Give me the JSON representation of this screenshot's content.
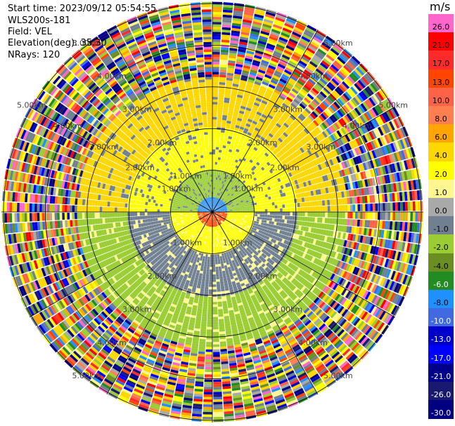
{
  "header": {
    "start_time": "Start time: 2023/09/12 05:54:55",
    "instrument": "WLS200s-181",
    "field": "Field: VEL",
    "elevation": "Elevation(deg): 35.30",
    "nrays": "NRays: 120"
  },
  "colorbar": {
    "title": "m/s",
    "bins": [
      {
        "label": "26.0",
        "color": "#ff66cc",
        "text": "#000000"
      },
      {
        "label": "21.0",
        "color": "#ff0000",
        "text": "#000000"
      },
      {
        "label": "17.0",
        "color": "#ff2a2a",
        "text": "#000000"
      },
      {
        "label": "13.0",
        "color": "#ff4500",
        "text": "#000000"
      },
      {
        "label": "10.0",
        "color": "#ff6347",
        "text": "#000000"
      },
      {
        "label": "8.0",
        "color": "#ff7f50",
        "text": "#000000"
      },
      {
        "label": "6.0",
        "color": "#ffa500",
        "text": "#000000"
      },
      {
        "label": "4.0",
        "color": "#ffd700",
        "text": "#000000"
      },
      {
        "label": "2.0",
        "color": "#ffff00",
        "text": "#000000"
      },
      {
        "label": "1.0",
        "color": "#fff68f",
        "text": "#000000"
      },
      {
        "label": "0.0",
        "color": "#a9a9a9",
        "text": "#000000"
      },
      {
        "label": "-1.0",
        "color": "#708090",
        "text": "#000000"
      },
      {
        "label": "-2.0",
        "color": "#9acd32",
        "text": "#000000"
      },
      {
        "label": "-4.0",
        "color": "#6b8e23",
        "text": "#000000"
      },
      {
        "label": "-6.0",
        "color": "#228b22",
        "text": "#ffffff"
      },
      {
        "label": "-8.0",
        "color": "#1e90ff",
        "text": "#000000"
      },
      {
        "label": "-10.0",
        "color": "#4169e1",
        "text": "#ffffff"
      },
      {
        "label": "-13.0",
        "color": "#0000cd",
        "text": "#ffffff"
      },
      {
        "label": "-17.0",
        "color": "#0000ff",
        "text": "#ffffff"
      },
      {
        "label": "-21.0",
        "color": "#00008b",
        "text": "#ffffff"
      },
      {
        "label": "-26.0",
        "color": "#191970",
        "text": "#ffffff"
      },
      {
        "label": "-30.0",
        "color": "#000080",
        "text": "#ffffff"
      }
    ]
  },
  "chart_data": {
    "type": "heatmap",
    "subtype": "polar-ppi",
    "field": "VEL",
    "units": "m/s",
    "n_rays": 120,
    "elevation_deg": 35.3,
    "range_ring_labels_km": [
      "1.00km",
      "2.00km",
      "3.00km",
      "4.00km",
      "5.00km"
    ],
    "range_rings_km": [
      1,
      2,
      3,
      4,
      5
    ],
    "max_range_km": 5.05,
    "spoke_angles_deg": [
      0,
      30,
      60,
      90,
      120,
      150,
      180,
      210,
      240,
      270,
      300,
      330
    ],
    "color_scale_min": -30.0,
    "color_scale_max": 26.0,
    "description_regions": [
      {
        "range_km": [
          0.0,
          0.35
        ],
        "north_half": "-8.0",
        "south_half": "13.0"
      },
      {
        "range_km": [
          0.35,
          1.0
        ],
        "north_half": "-2.0",
        "south_half": "2.0"
      },
      {
        "range_km": [
          1.0,
          2.0
        ],
        "north_half": "2.0",
        "south_half": "-1.0"
      },
      {
        "range_km": [
          2.0,
          3.2
        ],
        "north_half": "4.0",
        "south_half": "-2.0"
      },
      {
        "range_km": [
          3.2,
          5.05
        ],
        "north_half": "noise",
        "south_half": "noise"
      }
    ]
  }
}
